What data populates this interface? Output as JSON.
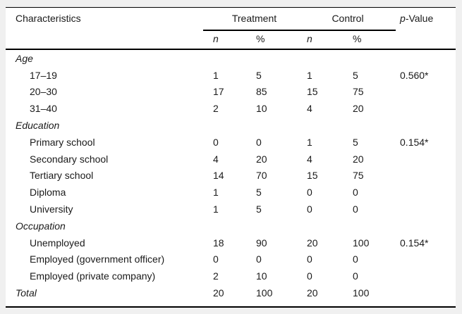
{
  "colors": {
    "page_background": "#f0f0f0",
    "panel_background": "#ffffff",
    "rule": "#000000",
    "text": "#1a1a1a"
  },
  "table": {
    "header": {
      "characteristics": "Characteristics",
      "treatment": "Treatment",
      "control": "Control",
      "p_value_italic": "p",
      "p_value_rest": "-Value",
      "n": "n",
      "pct": "%"
    },
    "rows": [
      {
        "label": "Age",
        "type": "section"
      },
      {
        "label": "17–19",
        "type": "item",
        "t_n": "1",
        "t_pct": "5",
        "c_n": "1",
        "c_pct": "5",
        "p": "0.560*"
      },
      {
        "label": "20–30",
        "type": "item",
        "t_n": "17",
        "t_pct": "85",
        "c_n": "15",
        "c_pct": "75"
      },
      {
        "label": "31–40",
        "type": "item",
        "t_n": "2",
        "t_pct": "10",
        "c_n": "4",
        "c_pct": "20"
      },
      {
        "label": "Education",
        "type": "section"
      },
      {
        "label": "Primary school",
        "type": "item",
        "t_n": "0",
        "t_pct": "0",
        "c_n": "1",
        "c_pct": "5",
        "p": "0.154*"
      },
      {
        "label": "Secondary school",
        "type": "item",
        "t_n": "4",
        "t_pct": "20",
        "c_n": "4",
        "c_pct": "20"
      },
      {
        "label": "Tertiary school",
        "type": "item",
        "t_n": "14",
        "t_pct": "70",
        "c_n": "15",
        "c_pct": "75"
      },
      {
        "label": "Diploma",
        "type": "item",
        "t_n": "1",
        "t_pct": "5",
        "c_n": "0",
        "c_pct": "0"
      },
      {
        "label": "University",
        "type": "item",
        "t_n": "1",
        "t_pct": "5",
        "c_n": "0",
        "c_pct": "0"
      },
      {
        "label": "Occupation",
        "type": "section"
      },
      {
        "label": "Unemployed",
        "type": "item",
        "t_n": "18",
        "t_pct": "90",
        "c_n": "20",
        "c_pct": "100",
        "p": "0.154*"
      },
      {
        "label": "Employed (government officer)",
        "type": "item",
        "t_n": "0",
        "t_pct": "0",
        "c_n": "0",
        "c_pct": "0"
      },
      {
        "label": "Employed (private company)",
        "type": "item",
        "t_n": "2",
        "t_pct": "10",
        "c_n": "0",
        "c_pct": "0"
      },
      {
        "label": "Total",
        "type": "total",
        "t_n": "20",
        "t_pct": "100",
        "c_n": "20",
        "c_pct": "100"
      }
    ]
  }
}
